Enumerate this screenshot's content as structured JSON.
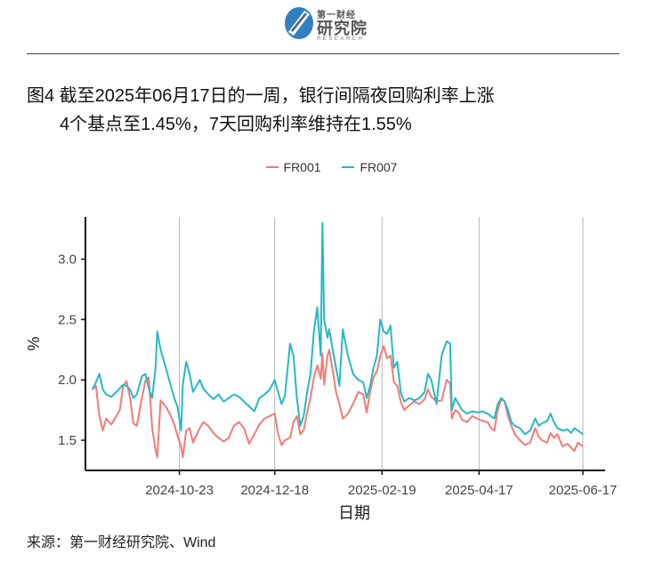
{
  "header": {
    "logo_small": "第一财经",
    "logo_main": "研究院",
    "logo_sub": "RESEARCH"
  },
  "title": {
    "line1": "图4  截至2025年06月17日的一周，银行间隔夜回购利率上涨",
    "line2": "4个基点至1.45%，7天回购利率维持在1.55%"
  },
  "source": "来源：第一财经研究院、Wind",
  "chart_data": {
    "type": "line",
    "xlabel": "日期",
    "ylabel": "%",
    "ylim": [
      1.25,
      3.35
    ],
    "yticks": [
      1.5,
      2.0,
      2.5,
      3.0
    ],
    "ytick_labels": [
      "1.5",
      "2.0",
      "2.5",
      "3.0"
    ],
    "x_start": "2024-09-02",
    "x_end": "2025-06-17",
    "xticks": [
      "2024-10-23",
      "2024-12-18",
      "2025-02-19",
      "2025-04-17",
      "2025-06-17"
    ],
    "grid": "vertical at x ticks",
    "legend_position": "top",
    "series": [
      {
        "name": "FR001",
        "color": "#f07c74",
        "points": [
          [
            "2024-09-02",
            1.92
          ],
          [
            "2024-09-04",
            1.95
          ],
          [
            "2024-09-06",
            1.7
          ],
          [
            "2024-09-08",
            1.58
          ],
          [
            "2024-09-10",
            1.68
          ],
          [
            "2024-09-13",
            1.63
          ],
          [
            "2024-09-16",
            1.7
          ],
          [
            "2024-09-18",
            1.75
          ],
          [
            "2024-09-20",
            1.95
          ],
          [
            "2024-09-22",
            1.99
          ],
          [
            "2024-09-24",
            1.85
          ],
          [
            "2024-09-26",
            1.64
          ],
          [
            "2024-09-28",
            1.62
          ],
          [
            "2024-10-01",
            1.85
          ],
          [
            "2024-10-03",
            1.99
          ],
          [
            "2024-10-05",
            2.02
          ],
          [
            "2024-10-07",
            1.6
          ],
          [
            "2024-10-09",
            1.42
          ],
          [
            "2024-10-10",
            1.36
          ],
          [
            "2024-10-12",
            1.83
          ],
          [
            "2024-10-15",
            1.78
          ],
          [
            "2024-10-18",
            1.7
          ],
          [
            "2024-10-20",
            1.63
          ],
          [
            "2024-10-22",
            1.53
          ],
          [
            "2024-10-24",
            1.45
          ],
          [
            "2024-10-25",
            1.36
          ],
          [
            "2024-10-27",
            1.58
          ],
          [
            "2024-10-29",
            1.6
          ],
          [
            "2024-10-31",
            1.48
          ],
          [
            "2024-11-02",
            1.54
          ],
          [
            "2024-11-04",
            1.6
          ],
          [
            "2024-11-06",
            1.65
          ],
          [
            "2024-11-09",
            1.62
          ],
          [
            "2024-11-12",
            1.56
          ],
          [
            "2024-11-15",
            1.52
          ],
          [
            "2024-11-18",
            1.49
          ],
          [
            "2024-11-21",
            1.52
          ],
          [
            "2024-11-24",
            1.62
          ],
          [
            "2024-11-27",
            1.65
          ],
          [
            "2024-11-30",
            1.6
          ],
          [
            "2024-12-03",
            1.47
          ],
          [
            "2024-12-06",
            1.55
          ],
          [
            "2024-12-09",
            1.63
          ],
          [
            "2024-12-12",
            1.68
          ],
          [
            "2024-12-15",
            1.7
          ],
          [
            "2024-12-18",
            1.72
          ],
          [
            "2024-12-20",
            1.55
          ],
          [
            "2024-12-22",
            1.46
          ],
          [
            "2024-12-24",
            1.5
          ],
          [
            "2024-12-27",
            1.52
          ],
          [
            "2024-12-29",
            1.65
          ],
          [
            "2024-12-31",
            1.7
          ],
          [
            "2025-01-02",
            1.55
          ],
          [
            "2025-01-04",
            1.58
          ],
          [
            "2025-01-06",
            1.73
          ],
          [
            "2025-01-08",
            1.85
          ],
          [
            "2025-01-10",
            2.02
          ],
          [
            "2025-01-12",
            2.12
          ],
          [
            "2025-01-14",
            2.01
          ],
          [
            "2025-01-15",
            2.22
          ],
          [
            "2025-01-16",
            1.96
          ],
          [
            "2025-01-18",
            2.2
          ],
          [
            "2025-01-19",
            2.25
          ],
          [
            "2025-01-21",
            2.08
          ],
          [
            "2025-01-23",
            1.9
          ],
          [
            "2025-01-25",
            1.8
          ],
          [
            "2025-01-27",
            1.68
          ],
          [
            "2025-01-30",
            1.72
          ],
          [
            "2025-02-02",
            1.8
          ],
          [
            "2025-02-05",
            1.9
          ],
          [
            "2025-02-08",
            1.88
          ],
          [
            "2025-02-10",
            1.73
          ],
          [
            "2025-02-12",
            1.9
          ],
          [
            "2025-02-14",
            2.02
          ],
          [
            "2025-02-16",
            2.07
          ],
          [
            "2025-02-18",
            2.2
          ],
          [
            "2025-02-20",
            2.28
          ],
          [
            "2025-02-22",
            2.18
          ],
          [
            "2025-02-24",
            2.2
          ],
          [
            "2025-02-26",
            1.98
          ],
          [
            "2025-02-28",
            1.95
          ],
          [
            "2025-03-02",
            1.82
          ],
          [
            "2025-03-04",
            1.75
          ],
          [
            "2025-03-07",
            1.79
          ],
          [
            "2025-03-10",
            1.82
          ],
          [
            "2025-03-13",
            1.8
          ],
          [
            "2025-03-16",
            1.84
          ],
          [
            "2025-03-18",
            1.92
          ],
          [
            "2025-03-20",
            1.86
          ],
          [
            "2025-03-23",
            1.82
          ],
          [
            "2025-03-26",
            1.83
          ],
          [
            "2025-03-29",
            2.0
          ],
          [
            "2025-03-31",
            1.97
          ],
          [
            "2025-04-01",
            1.68
          ],
          [
            "2025-04-03",
            1.75
          ],
          [
            "2025-04-05",
            1.73
          ],
          [
            "2025-04-07",
            1.67
          ],
          [
            "2025-04-10",
            1.65
          ],
          [
            "2025-04-13",
            1.7
          ],
          [
            "2025-04-16",
            1.68
          ],
          [
            "2025-04-19",
            1.66
          ],
          [
            "2025-04-22",
            1.65
          ],
          [
            "2025-04-24",
            1.6
          ],
          [
            "2025-04-26",
            1.58
          ],
          [
            "2025-04-28",
            1.75
          ],
          [
            "2025-04-30",
            1.84
          ],
          [
            "2025-05-02",
            1.82
          ],
          [
            "2025-05-04",
            1.7
          ],
          [
            "2025-05-06",
            1.62
          ],
          [
            "2025-05-08",
            1.55
          ],
          [
            "2025-05-11",
            1.5
          ],
          [
            "2025-05-14",
            1.46
          ],
          [
            "2025-05-17",
            1.48
          ],
          [
            "2025-05-20",
            1.6
          ],
          [
            "2025-05-22",
            1.53
          ],
          [
            "2025-05-24",
            1.5
          ],
          [
            "2025-05-27",
            1.48
          ],
          [
            "2025-05-29",
            1.56
          ],
          [
            "2025-05-31",
            1.52
          ],
          [
            "2025-06-02",
            1.55
          ],
          [
            "2025-06-05",
            1.45
          ],
          [
            "2025-06-08",
            1.47
          ],
          [
            "2025-06-10",
            1.44
          ],
          [
            "2025-06-12",
            1.41
          ],
          [
            "2025-06-14",
            1.48
          ],
          [
            "2025-06-17",
            1.45
          ]
        ]
      },
      {
        "name": "FR007",
        "color": "#26b8c4",
        "points": [
          [
            "2024-09-02",
            1.92
          ],
          [
            "2024-09-04",
            1.98
          ],
          [
            "2024-09-06",
            2.05
          ],
          [
            "2024-09-08",
            1.92
          ],
          [
            "2024-09-10",
            1.88
          ],
          [
            "2024-09-13",
            1.86
          ],
          [
            "2024-09-16",
            1.9
          ],
          [
            "2024-09-18",
            1.93
          ],
          [
            "2024-09-20",
            1.96
          ],
          [
            "2024-09-22",
            1.95
          ],
          [
            "2024-09-24",
            1.92
          ],
          [
            "2024-09-26",
            1.85
          ],
          [
            "2024-09-28",
            1.88
          ],
          [
            "2024-10-01",
            2.03
          ],
          [
            "2024-10-03",
            2.05
          ],
          [
            "2024-10-05",
            1.93
          ],
          [
            "2024-10-07",
            1.85
          ],
          [
            "2024-10-09",
            2.1
          ],
          [
            "2024-10-10",
            2.4
          ],
          [
            "2024-10-12",
            2.25
          ],
          [
            "2024-10-15",
            2.1
          ],
          [
            "2024-10-18",
            1.95
          ],
          [
            "2024-10-20",
            1.85
          ],
          [
            "2024-10-22",
            1.77
          ],
          [
            "2024-10-24",
            1.58
          ],
          [
            "2024-10-25",
            1.96
          ],
          [
            "2024-10-27",
            2.15
          ],
          [
            "2024-10-29",
            2.05
          ],
          [
            "2024-10-31",
            1.9
          ],
          [
            "2024-11-02",
            1.95
          ],
          [
            "2024-11-04",
            2.0
          ],
          [
            "2024-11-06",
            1.93
          ],
          [
            "2024-11-09",
            1.88
          ],
          [
            "2024-11-12",
            1.84
          ],
          [
            "2024-11-15",
            1.88
          ],
          [
            "2024-11-18",
            1.82
          ],
          [
            "2024-11-21",
            1.85
          ],
          [
            "2024-11-24",
            1.88
          ],
          [
            "2024-11-27",
            1.86
          ],
          [
            "2024-11-30",
            1.82
          ],
          [
            "2024-12-03",
            1.78
          ],
          [
            "2024-12-06",
            1.74
          ],
          [
            "2024-12-09",
            1.85
          ],
          [
            "2024-12-12",
            1.88
          ],
          [
            "2024-12-15",
            1.92
          ],
          [
            "2024-12-18",
            2.0
          ],
          [
            "2024-12-20",
            1.9
          ],
          [
            "2024-12-22",
            1.8
          ],
          [
            "2024-12-24",
            1.87
          ],
          [
            "2024-12-27",
            2.3
          ],
          [
            "2024-12-29",
            2.2
          ],
          [
            "2024-12-31",
            1.85
          ],
          [
            "2025-01-02",
            1.62
          ],
          [
            "2025-01-04",
            1.7
          ],
          [
            "2025-01-06",
            1.9
          ],
          [
            "2025-01-08",
            2.05
          ],
          [
            "2025-01-10",
            2.4
          ],
          [
            "2025-01-12",
            2.6
          ],
          [
            "2025-01-14",
            2.2
          ],
          [
            "2025-01-15",
            3.3
          ],
          [
            "2025-01-16",
            2.5
          ],
          [
            "2025-01-18",
            2.35
          ],
          [
            "2025-01-19",
            2.42
          ],
          [
            "2025-01-21",
            2.25
          ],
          [
            "2025-01-23",
            2.1
          ],
          [
            "2025-01-25",
            1.95
          ],
          [
            "2025-01-27",
            2.42
          ],
          [
            "2025-01-30",
            2.2
          ],
          [
            "2025-02-02",
            2.05
          ],
          [
            "2025-02-05",
            2.0
          ],
          [
            "2025-02-08",
            1.98
          ],
          [
            "2025-02-10",
            1.85
          ],
          [
            "2025-02-12",
            1.95
          ],
          [
            "2025-02-14",
            2.1
          ],
          [
            "2025-02-16",
            2.2
          ],
          [
            "2025-02-18",
            2.5
          ],
          [
            "2025-02-20",
            2.4
          ],
          [
            "2025-02-22",
            2.38
          ],
          [
            "2025-02-24",
            2.45
          ],
          [
            "2025-02-26",
            2.1
          ],
          [
            "2025-02-28",
            2.15
          ],
          [
            "2025-03-02",
            1.9
          ],
          [
            "2025-03-04",
            1.82
          ],
          [
            "2025-03-07",
            1.85
          ],
          [
            "2025-03-10",
            1.83
          ],
          [
            "2025-03-13",
            1.85
          ],
          [
            "2025-03-16",
            1.9
          ],
          [
            "2025-03-18",
            2.05
          ],
          [
            "2025-03-20",
            2.0
          ],
          [
            "2025-03-23",
            1.8
          ],
          [
            "2025-03-26",
            2.2
          ],
          [
            "2025-03-29",
            2.32
          ],
          [
            "2025-03-31",
            2.3
          ],
          [
            "2025-04-01",
            1.75
          ],
          [
            "2025-04-03",
            1.85
          ],
          [
            "2025-04-05",
            1.8
          ],
          [
            "2025-04-07",
            1.75
          ],
          [
            "2025-04-10",
            1.72
          ],
          [
            "2025-04-13",
            1.74
          ],
          [
            "2025-04-16",
            1.73
          ],
          [
            "2025-04-19",
            1.74
          ],
          [
            "2025-04-22",
            1.72
          ],
          [
            "2025-04-24",
            1.7
          ],
          [
            "2025-04-26",
            1.68
          ],
          [
            "2025-04-28",
            1.8
          ],
          [
            "2025-04-30",
            1.85
          ],
          [
            "2025-05-02",
            1.82
          ],
          [
            "2025-05-04",
            1.75
          ],
          [
            "2025-05-06",
            1.65
          ],
          [
            "2025-05-08",
            1.62
          ],
          [
            "2025-05-11",
            1.6
          ],
          [
            "2025-05-14",
            1.55
          ],
          [
            "2025-05-17",
            1.58
          ],
          [
            "2025-05-20",
            1.68
          ],
          [
            "2025-05-22",
            1.62
          ],
          [
            "2025-05-24",
            1.64
          ],
          [
            "2025-05-27",
            1.66
          ],
          [
            "2025-05-29",
            1.72
          ],
          [
            "2025-05-31",
            1.65
          ],
          [
            "2025-06-02",
            1.6
          ],
          [
            "2025-06-05",
            1.58
          ],
          [
            "2025-06-08",
            1.59
          ],
          [
            "2025-06-10",
            1.56
          ],
          [
            "2025-06-12",
            1.6
          ],
          [
            "2025-06-14",
            1.58
          ],
          [
            "2025-06-17",
            1.55
          ]
        ]
      }
    ]
  }
}
